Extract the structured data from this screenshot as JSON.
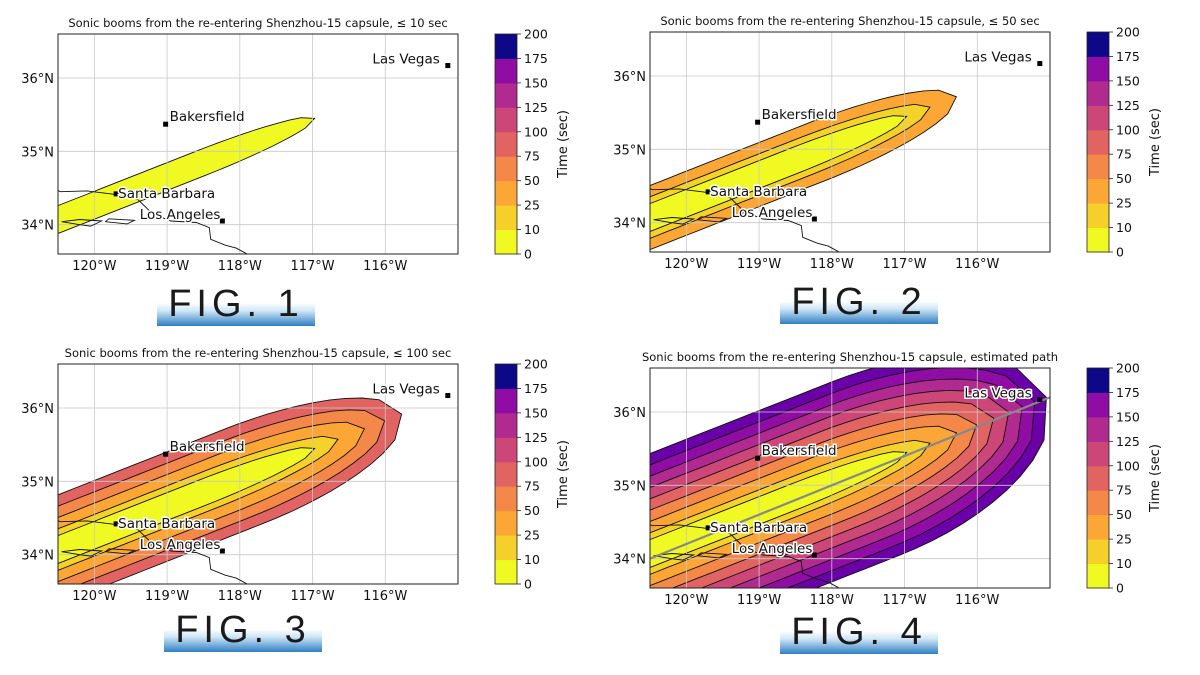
{
  "colorbar": {
    "label": "Time (sec)",
    "ticks": [
      "0",
      "10",
      "25",
      "50",
      "75",
      "100",
      "125",
      "150",
      "175",
      "200"
    ],
    "colors": [
      "#f0f921",
      "#f6d02a",
      "#fca636",
      "#f89540",
      "#e97158",
      "#d5546e",
      "#c13c81",
      "#b12a90",
      "#8f0da4",
      "#6a00a8",
      "#4c02a1",
      "#0d0887"
    ]
  },
  "cities": [
    {
      "name": "Las Vegas",
      "lon": -115.14,
      "lat": 36.17
    },
    {
      "name": "Bakersfield",
      "lon": -119.02,
      "lat": 35.37
    },
    {
      "name": "Santa Barbara",
      "lon": -119.7,
      "lat": 34.42
    },
    {
      "name": "Los Angeles",
      "lon": -118.24,
      "lat": 34.05
    }
  ],
  "panels": [
    {
      "title": "Sonic booms from the re-entering Shenzhou-15 capsule, ≤ 10 sec",
      "fig": "FIG. 1",
      "max_time": 10,
      "show_path": false
    },
    {
      "title": "Sonic booms from the re-entering Shenzhou-15 capsule, ≤ 50 sec",
      "fig": "FIG. 2",
      "max_time": 50,
      "show_path": false
    },
    {
      "title": "Sonic booms from the re-entering Shenzhou-15 capsule, ≤ 100 sec",
      "fig": "FIG. 3",
      "max_time": 100,
      "show_path": false
    },
    {
      "title": "Sonic booms from the re-entering Shenzhou-15 capsule, estimated path",
      "fig": "FIG. 4",
      "max_time": 200,
      "show_path": true
    }
  ],
  "chart_data": [
    {
      "type": "heatmap",
      "title": "Sonic booms from the re-entering Shenzhou-15 capsule, ≤ 10 sec",
      "x_ticks": [
        "120°W",
        "119°W",
        "118°W",
        "117°W",
        "116°W"
      ],
      "y_ticks": [
        "34°N",
        "35°N",
        "36°N"
      ],
      "xlim": [
        -120.5,
        -115.0
      ],
      "ylim": [
        33.6,
        36.6
      ],
      "colorbar_label": "Time (sec)",
      "colorbar_range": [
        0,
        200
      ],
      "levels": [
        0,
        10,
        25,
        50,
        75,
        100,
        125,
        150,
        175,
        200
      ],
      "max_time_shown": 10
    },
    {
      "type": "heatmap",
      "title": "Sonic booms from the re-entering Shenzhou-15 capsule, ≤ 50 sec",
      "x_ticks": [
        "120°W",
        "119°W",
        "118°W",
        "117°W",
        "116°W"
      ],
      "y_ticks": [
        "34°N",
        "35°N",
        "36°N"
      ],
      "xlim": [
        -120.5,
        -115.0
      ],
      "ylim": [
        33.6,
        36.6
      ],
      "colorbar_label": "Time (sec)",
      "colorbar_range": [
        0,
        200
      ],
      "levels": [
        0,
        10,
        25,
        50,
        75,
        100,
        125,
        150,
        175,
        200
      ],
      "max_time_shown": 50
    },
    {
      "type": "heatmap",
      "title": "Sonic booms from the re-entering Shenzhou-15 capsule, ≤ 100 sec",
      "x_ticks": [
        "120°W",
        "119°W",
        "118°W",
        "117°W",
        "116°W"
      ],
      "y_ticks": [
        "34°N",
        "35°N",
        "36°N"
      ],
      "xlim": [
        -120.5,
        -115.0
      ],
      "ylim": [
        33.6,
        36.6
      ],
      "colorbar_label": "Time (sec)",
      "colorbar_range": [
        0,
        200
      ],
      "levels": [
        0,
        10,
        25,
        50,
        75,
        100,
        125,
        150,
        175,
        200
      ],
      "max_time_shown": 100
    },
    {
      "type": "heatmap",
      "title": "Sonic booms from the re-entering Shenzhou-15 capsule, estimated path",
      "x_ticks": [
        "120°W",
        "119°W",
        "118°W",
        "117°W",
        "116°W"
      ],
      "y_ticks": [
        "34°N",
        "35°N",
        "36°N"
      ],
      "xlim": [
        -120.5,
        -115.0
      ],
      "ylim": [
        33.6,
        36.6
      ],
      "colorbar_label": "Time (sec)",
      "colorbar_range": [
        0,
        200
      ],
      "levels": [
        0,
        10,
        25,
        50,
        75,
        100,
        125,
        150,
        175,
        200
      ],
      "max_time_shown": 200,
      "path": [
        [
          -120.5,
          34.0
        ],
        [
          -115.0,
          36.2
        ]
      ]
    }
  ]
}
